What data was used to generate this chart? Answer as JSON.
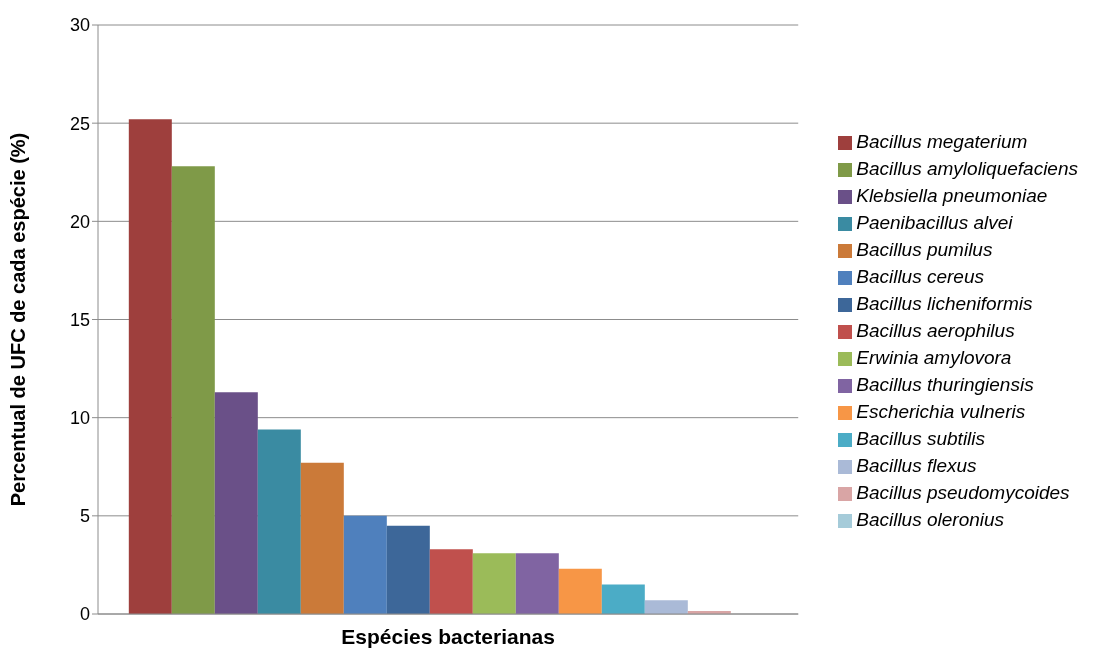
{
  "chart_data": {
    "type": "bar",
    "xlabel": "Espécies bacterianas",
    "ylabel": "Percentual de UFC de cada espécie (%)",
    "categories": [
      null
    ],
    "series": [
      {
        "name": "Bacillus megaterium",
        "color": "#9e3f3d",
        "values": [
          25.2
        ]
      },
      {
        "name": "Bacillus amyloliquefaciens",
        "color": "#7f9a48",
        "values": [
          22.8
        ]
      },
      {
        "name": "Klebsiella pneumoniae",
        "color": "#6a5088",
        "values": [
          11.3
        ]
      },
      {
        "name": "Paenibacillus alvei",
        "color": "#3a8ba2",
        "values": [
          9.4
        ]
      },
      {
        "name": "Bacillus pumilus",
        "color": "#cb7a39",
        "values": [
          7.7
        ]
      },
      {
        "name": "Bacillus cereus",
        "color": "#4f80bd",
        "values": [
          5.0
        ]
      },
      {
        "name": "Bacillus licheniformis",
        "color": "#3d6799",
        "values": [
          4.5
        ]
      },
      {
        "name": "Bacillus aerophilus",
        "color": "#c0504d",
        "values": [
          3.3
        ]
      },
      {
        "name": "Erwinia amylovora",
        "color": "#9bbb59",
        "values": [
          3.1
        ]
      },
      {
        "name": "Bacillus thuringiensis",
        "color": "#8064a2",
        "values": [
          3.1
        ]
      },
      {
        "name": "Escherichia vulneris",
        "color": "#f79646",
        "values": [
          2.3
        ]
      },
      {
        "name": "Bacillus subtilis",
        "color": "#4bacc6",
        "values": [
          1.5
        ]
      },
      {
        "name": "Bacillus flexus",
        "color": "#aabad7",
        "values": [
          0.7
        ]
      },
      {
        "name": "Bacillus pseudomycoides",
        "color": "#d9a5a5",
        "values": [
          0.15
        ]
      },
      {
        "name": "Bacillus oleronius",
        "color": "#a5cbd9",
        "values": [
          0
        ]
      }
    ],
    "ylim": [
      0,
      30
    ],
    "yticks": [
      0,
      5,
      10,
      15,
      20,
      25,
      30
    ],
    "grid": "y",
    "legend": "right"
  }
}
